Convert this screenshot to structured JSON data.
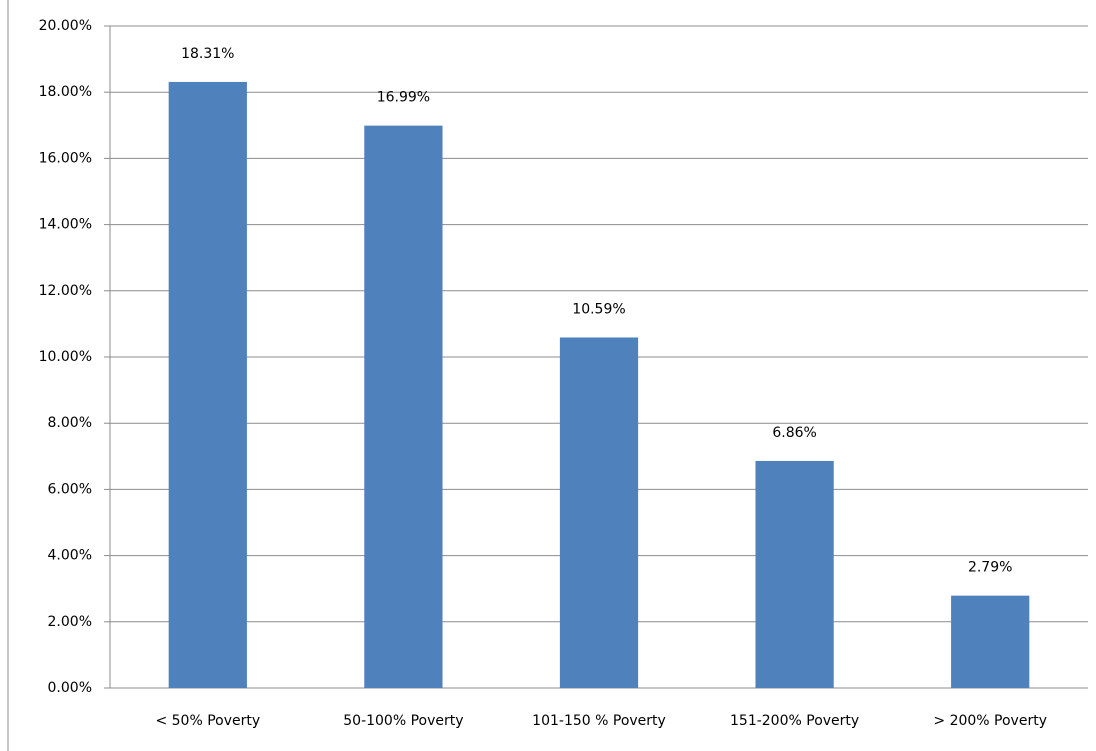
{
  "chart_data": {
    "type": "bar",
    "categories": [
      "< 50% Poverty",
      "50-100% Poverty",
      "101-150 % Poverty",
      "151-200% Poverty",
      "> 200% Poverty"
    ],
    "values": [
      18.31,
      16.99,
      10.59,
      6.86,
      2.79
    ],
    "value_labels": [
      "18.31%",
      "16.99%",
      "10.59%",
      "6.86%",
      "2.79%"
    ],
    "color": "#4f81bd",
    "ylim": [
      0,
      20
    ],
    "yticks": [
      {
        "value": 0,
        "label": "0.00%"
      },
      {
        "value": 2,
        "label": "2.00%"
      },
      {
        "value": 4,
        "label": "4.00%"
      },
      {
        "value": 6,
        "label": "6.00%"
      },
      {
        "value": 8,
        "label": "8.00%"
      },
      {
        "value": 10,
        "label": "10.00%"
      },
      {
        "value": 12,
        "label": "12.00%"
      },
      {
        "value": 14,
        "label": "14.00%"
      },
      {
        "value": 16,
        "label": "16.00%"
      },
      {
        "value": 18,
        "label": "18.00%"
      },
      {
        "value": 20,
        "label": "20.00%"
      }
    ],
    "grid": true
  }
}
